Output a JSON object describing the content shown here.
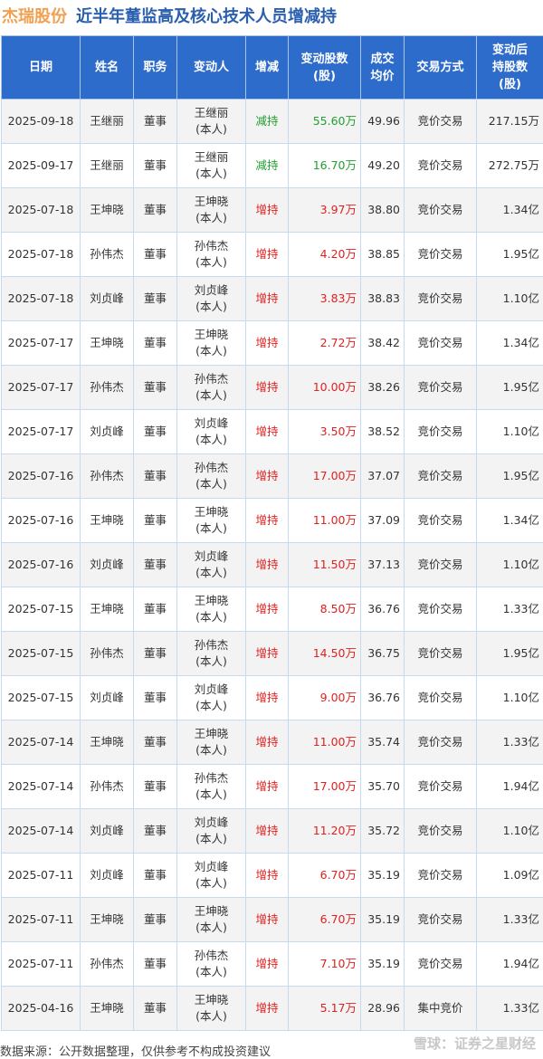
{
  "title": {
    "company": "杰瑞股份",
    "text": "近半年董监高及核心技术人员增减持"
  },
  "headers": [
    "日期",
    "姓名",
    "职务",
    "变动人",
    "增减",
    "变动股数\n(股)",
    "成交\n均价",
    "交易方式",
    "变动后\n持股数\n(股)"
  ],
  "colors": {
    "header_bg": "#2e6ccc",
    "increase": "#e02020",
    "decrease": "#20a030",
    "company": "#f0a050",
    "title": "#2a5fb0"
  },
  "rows": [
    [
      "2025-09-18",
      "王继丽",
      "董事",
      "王继丽\n(本人)",
      "减持",
      "55.60万",
      "49.96",
      "竞价交易",
      "217.15万"
    ],
    [
      "2025-09-17",
      "王继丽",
      "董事",
      "王继丽\n(本人)",
      "减持",
      "16.70万",
      "49.20",
      "竞价交易",
      "272.75万"
    ],
    [
      "2025-07-18",
      "王坤晓",
      "董事",
      "王坤晓\n(本人)",
      "增持",
      "3.97万",
      "38.80",
      "竞价交易",
      "1.34亿"
    ],
    [
      "2025-07-18",
      "孙伟杰",
      "董事",
      "孙伟杰\n(本人)",
      "增持",
      "4.20万",
      "38.85",
      "竞价交易",
      "1.95亿"
    ],
    [
      "2025-07-18",
      "刘贞峰",
      "董事",
      "刘贞峰\n(本人)",
      "增持",
      "3.83万",
      "38.83",
      "竞价交易",
      "1.10亿"
    ],
    [
      "2025-07-17",
      "王坤晓",
      "董事",
      "王坤晓\n(本人)",
      "增持",
      "2.72万",
      "38.42",
      "竞价交易",
      "1.34亿"
    ],
    [
      "2025-07-17",
      "孙伟杰",
      "董事",
      "孙伟杰\n(本人)",
      "增持",
      "10.00万",
      "38.26",
      "竞价交易",
      "1.95亿"
    ],
    [
      "2025-07-17",
      "刘贞峰",
      "董事",
      "刘贞峰\n(本人)",
      "增持",
      "3.50万",
      "38.52",
      "竞价交易",
      "1.10亿"
    ],
    [
      "2025-07-16",
      "孙伟杰",
      "董事",
      "孙伟杰\n(本人)",
      "增持",
      "17.00万",
      "37.07",
      "竞价交易",
      "1.95亿"
    ],
    [
      "2025-07-16",
      "王坤晓",
      "董事",
      "王坤晓\n(本人)",
      "增持",
      "11.00万",
      "37.09",
      "竞价交易",
      "1.34亿"
    ],
    [
      "2025-07-16",
      "刘贞峰",
      "董事",
      "刘贞峰\n(本人)",
      "增持",
      "11.50万",
      "37.13",
      "竞价交易",
      "1.10亿"
    ],
    [
      "2025-07-15",
      "王坤晓",
      "董事",
      "王坤晓\n(本人)",
      "增持",
      "8.50万",
      "36.76",
      "竞价交易",
      "1.33亿"
    ],
    [
      "2025-07-15",
      "孙伟杰",
      "董事",
      "孙伟杰\n(本人)",
      "增持",
      "14.50万",
      "36.75",
      "竞价交易",
      "1.95亿"
    ],
    [
      "2025-07-15",
      "刘贞峰",
      "董事",
      "刘贞峰\n(本人)",
      "增持",
      "9.00万",
      "36.76",
      "竞价交易",
      "1.10亿"
    ],
    [
      "2025-07-14",
      "王坤晓",
      "董事",
      "王坤晓\n(本人)",
      "增持",
      "11.00万",
      "35.74",
      "竞价交易",
      "1.33亿"
    ],
    [
      "2025-07-14",
      "孙伟杰",
      "董事",
      "孙伟杰\n(本人)",
      "增持",
      "17.00万",
      "35.70",
      "竞价交易",
      "1.94亿"
    ],
    [
      "2025-07-14",
      "刘贞峰",
      "董事",
      "刘贞峰\n(本人)",
      "增持",
      "11.20万",
      "35.72",
      "竞价交易",
      "1.10亿"
    ],
    [
      "2025-07-11",
      "刘贞峰",
      "董事",
      "刘贞峰\n(本人)",
      "增持",
      "6.70万",
      "35.19",
      "竞价交易",
      "1.09亿"
    ],
    [
      "2025-07-11",
      "王坤晓",
      "董事",
      "王坤晓\n(本人)",
      "增持",
      "6.70万",
      "35.19",
      "竞价交易",
      "1.33亿"
    ],
    [
      "2025-07-11",
      "孙伟杰",
      "董事",
      "孙伟杰\n(本人)",
      "增持",
      "7.10万",
      "35.19",
      "竞价交易",
      "1.94亿"
    ],
    [
      "2025-04-16",
      "王坤晓",
      "董事",
      "王坤晓\n(本人)",
      "增持",
      "5.17万",
      "28.96",
      "集中竞价",
      "1.33亿"
    ]
  ],
  "footer": "数据来源：公开数据整理，仅供参考不构成投资建议",
  "watermark": "雪球：证券之星财经"
}
